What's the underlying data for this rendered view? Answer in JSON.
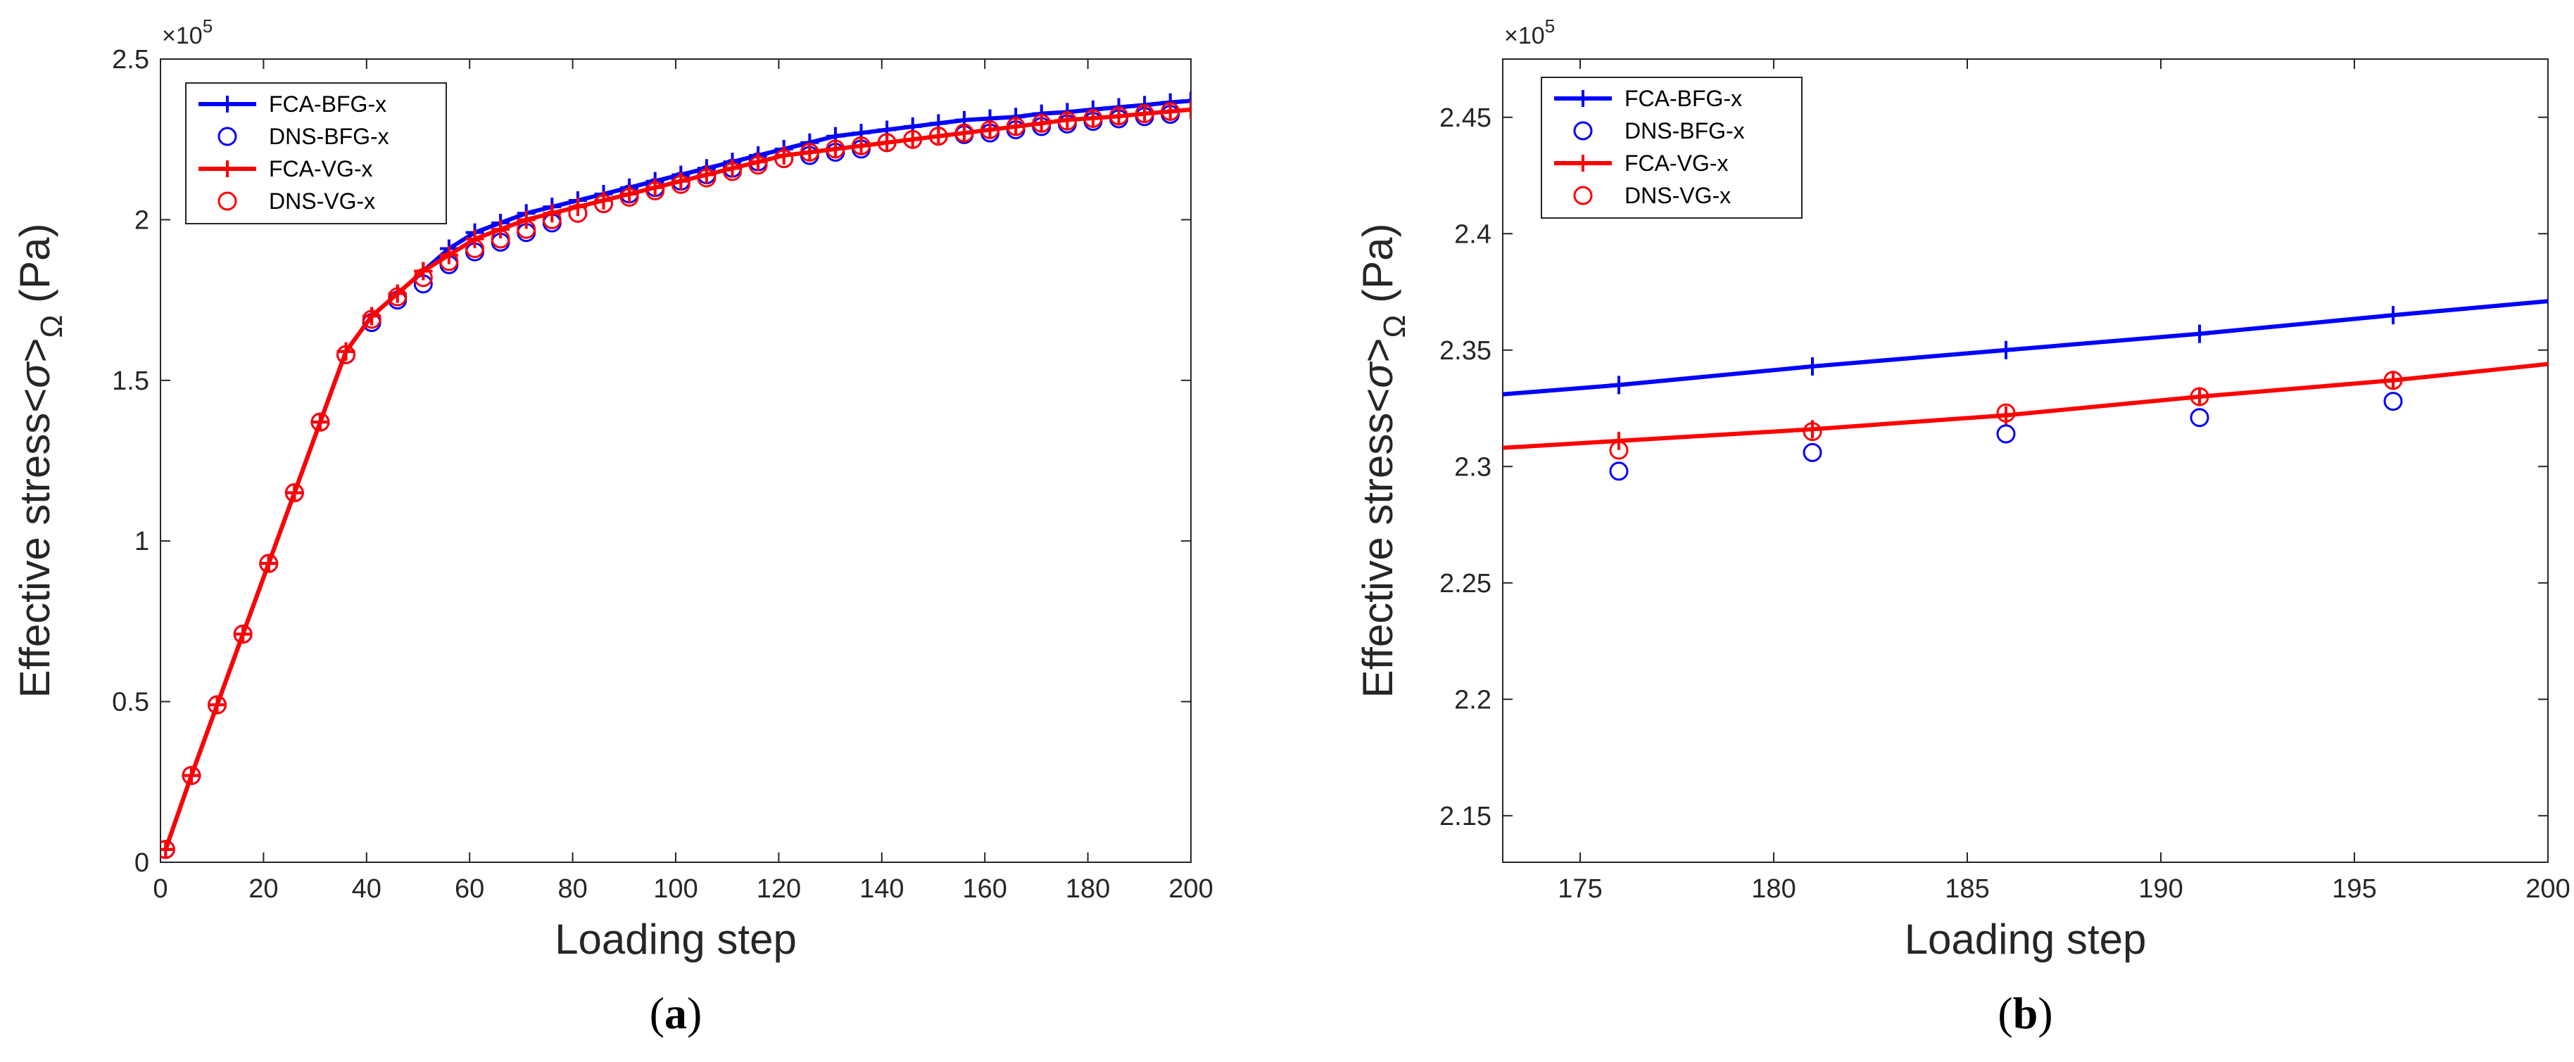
{
  "chart_data": [
    {
      "panel": "a",
      "type": "line",
      "caption_letter": "a",
      "xlabel": "Loading step",
      "ylabel": "Effective stress<σ>Ω (Pa)",
      "ylabel_parts": {
        "main": "Effective stress<",
        "sym": "σ",
        "close": ">",
        "sub": "Ω",
        "unit": " (Pa)"
      },
      "exponent": {
        "base": "×10",
        "power": "5"
      },
      "xlim": [
        0,
        200
      ],
      "ylim": [
        0,
        2.5
      ],
      "xticks": [
        0,
        20,
        40,
        60,
        80,
        100,
        120,
        140,
        160,
        180,
        200
      ],
      "xtick_labels": [
        "0",
        "20",
        "40",
        "60",
        "80",
        "100",
        "120",
        "140",
        "160",
        "180",
        "200"
      ],
      "yticks": [
        0,
        0.5,
        1,
        1.5,
        2,
        2.5
      ],
      "ytick_labels": [
        "0",
        "0.5",
        "1",
        "1.5",
        "2",
        "2.5"
      ],
      "legend_position": "top-left",
      "series": [
        {
          "name": "FCA-BFG-x",
          "color": "#0000ff",
          "style": "line-plus",
          "x": [
            1,
            6,
            11,
            16,
            21,
            26,
            31,
            36,
            41,
            46,
            51,
            56,
            61,
            66,
            71,
            76,
            81,
            86,
            91,
            96,
            101,
            106,
            111,
            116,
            121,
            126,
            131,
            136,
            141,
            146,
            151,
            156,
            161,
            166,
            171,
            176,
            181,
            186,
            191,
            196,
            200
          ],
          "values": [
            0.04,
            0.27,
            0.49,
            0.71,
            0.93,
            1.15,
            1.37,
            1.59,
            1.7,
            1.77,
            1.84,
            1.91,
            1.96,
            1.99,
            2.02,
            2.04,
            2.06,
            2.08,
            2.1,
            2.12,
            2.14,
            2.16,
            2.18,
            2.2,
            2.22,
            2.24,
            2.26,
            2.27,
            2.28,
            2.29,
            2.3,
            2.31,
            2.315,
            2.32,
            2.33,
            2.335,
            2.343,
            2.35,
            2.357,
            2.365,
            2.37
          ]
        },
        {
          "name": "DNS-BFG-x",
          "color": "#0000ff",
          "style": "circle",
          "x": [
            1,
            6,
            11,
            16,
            21,
            26,
            31,
            36,
            41,
            46,
            51,
            56,
            61,
            66,
            71,
            76,
            81,
            86,
            91,
            96,
            101,
            106,
            111,
            116,
            121,
            126,
            131,
            136,
            141,
            146,
            151,
            156,
            161,
            166,
            171,
            176,
            181,
            186,
            191,
            196
          ],
          "values": [
            0.04,
            0.27,
            0.49,
            0.71,
            0.93,
            1.15,
            1.37,
            1.58,
            1.68,
            1.75,
            1.8,
            1.86,
            1.9,
            1.93,
            1.96,
            1.99,
            2.02,
            2.05,
            2.08,
            2.1,
            2.12,
            2.14,
            2.16,
            2.18,
            2.19,
            2.2,
            2.21,
            2.22,
            2.24,
            2.25,
            2.26,
            2.265,
            2.27,
            2.28,
            2.29,
            2.298,
            2.306,
            2.314,
            2.321,
            2.328
          ]
        },
        {
          "name": "FCA-VG-x",
          "color": "#ff0000",
          "style": "line-plus",
          "x": [
            1,
            6,
            11,
            16,
            21,
            26,
            31,
            36,
            41,
            46,
            51,
            56,
            61,
            66,
            71,
            76,
            81,
            86,
            91,
            96,
            101,
            106,
            111,
            116,
            121,
            126,
            131,
            136,
            141,
            146,
            151,
            156,
            161,
            166,
            171,
            176,
            181,
            186,
            191,
            196,
            200
          ],
          "values": [
            0.04,
            0.27,
            0.49,
            0.71,
            0.93,
            1.15,
            1.37,
            1.59,
            1.7,
            1.77,
            1.84,
            1.89,
            1.94,
            1.97,
            2.0,
            2.02,
            2.04,
            2.06,
            2.08,
            2.1,
            2.12,
            2.14,
            2.16,
            2.18,
            2.2,
            2.21,
            2.22,
            2.23,
            2.24,
            2.25,
            2.26,
            2.27,
            2.28,
            2.29,
            2.3,
            2.311,
            2.316,
            2.322,
            2.33,
            2.337,
            2.343
          ]
        },
        {
          "name": "DNS-VG-x",
          "color": "#ff0000",
          "style": "circle",
          "x": [
            1,
            6,
            11,
            16,
            21,
            26,
            31,
            36,
            41,
            46,
            51,
            56,
            61,
            66,
            71,
            76,
            81,
            86,
            91,
            96,
            101,
            106,
            111,
            116,
            121,
            126,
            131,
            136,
            141,
            146,
            151,
            156,
            161,
            166,
            171,
            176,
            181,
            186,
            191,
            196
          ],
          "values": [
            0.04,
            0.27,
            0.49,
            0.71,
            0.93,
            1.15,
            1.37,
            1.58,
            1.69,
            1.76,
            1.82,
            1.87,
            1.91,
            1.94,
            1.97,
            2.0,
            2.02,
            2.05,
            2.07,
            2.09,
            2.11,
            2.13,
            2.15,
            2.17,
            2.19,
            2.21,
            2.22,
            2.23,
            2.24,
            2.25,
            2.26,
            2.27,
            2.28,
            2.29,
            2.3,
            2.307,
            2.315,
            2.323,
            2.33,
            2.337
          ]
        }
      ]
    },
    {
      "panel": "b",
      "type": "line",
      "caption_letter": "b",
      "xlabel": "Loading step",
      "ylabel": "Effective stress<σ>Ω (Pa)",
      "ylabel_parts": {
        "main": "Effective stress<",
        "sym": "σ",
        "close": ">",
        "sub": "Ω",
        "unit": " (Pa)"
      },
      "exponent": {
        "base": "×10",
        "power": "5"
      },
      "xlim": [
        173,
        200
      ],
      "ylim": [
        2.13,
        2.475
      ],
      "xticks": [
        175,
        180,
        185,
        190,
        195,
        200
      ],
      "xtick_labels": [
        "175",
        "180",
        "185",
        "190",
        "195",
        "200"
      ],
      "yticks": [
        2.15,
        2.2,
        2.25,
        2.3,
        2.35,
        2.4,
        2.45
      ],
      "ytick_labels": [
        "2.15",
        "2.2",
        "2.25",
        "2.3",
        "2.35",
        "2.4",
        "2.45"
      ],
      "legend_position": "top-left",
      "series": [
        {
          "name": "FCA-BFG-x",
          "color": "#0000ff",
          "style": "line-plus",
          "x": [
            173,
            176,
            181,
            186,
            191,
            196,
            200
          ],
          "values": [
            2.331,
            2.335,
            2.343,
            2.35,
            2.357,
            2.365,
            2.371
          ],
          "marker_x": [
            176,
            181,
            186,
            191,
            196
          ]
        },
        {
          "name": "DNS-BFG-x",
          "color": "#0000ff",
          "style": "circle",
          "x": [
            176,
            181,
            186,
            191,
            196
          ],
          "values": [
            2.298,
            2.306,
            2.314,
            2.321,
            2.328
          ]
        },
        {
          "name": "FCA-VG-x",
          "color": "#ff0000",
          "style": "line-plus",
          "x": [
            173,
            176,
            181,
            186,
            191,
            196,
            200
          ],
          "values": [
            2.308,
            2.311,
            2.316,
            2.322,
            2.33,
            2.337,
            2.344
          ],
          "marker_x": [
            176,
            181,
            186,
            191,
            196
          ]
        },
        {
          "name": "DNS-VG-x",
          "color": "#ff0000",
          "style": "circle",
          "x": [
            176,
            181,
            186,
            191,
            196
          ],
          "values": [
            2.307,
            2.315,
            2.323,
            2.33,
            2.337
          ]
        }
      ]
    }
  ]
}
